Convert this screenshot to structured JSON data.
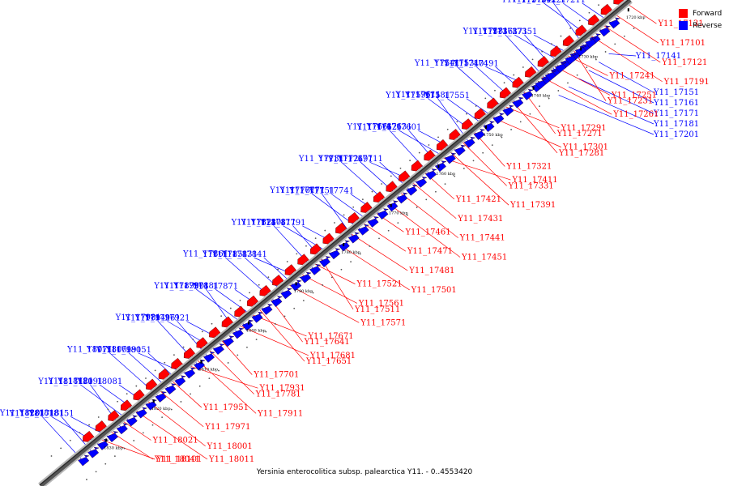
{
  "title": "Yersinia enterocolitica subsp. palearctica Y11. - 0..4553420",
  "legend": [
    {
      "label": "Forward",
      "color": "#ff0000"
    },
    {
      "label": "Reverse",
      "color": "#0000ff"
    }
  ],
  "colors": {
    "forward": "#ff0000",
    "reverse": "#0000ff",
    "axis": "#555555"
  },
  "scale_ticks": [
    "1720 kbp",
    "1730 kbp",
    "1740 kbp",
    "1750 kbp",
    "1760 kbp",
    "1770 kbp",
    "1780 kbp",
    "1790 kbp",
    "1800 kbp",
    "1810 kbp",
    "1820 kbp",
    "1830 kbp"
  ],
  "reverse_genes": [
    "Y11_17211",
    "Y11_17221",
    "Y11_17311",
    "Y11_17341",
    "Y11_17351",
    "Y11_17361",
    "Y11_17371",
    "Y11_17381",
    "Y11_17401",
    "Y11_17491",
    "Y11_17531",
    "Y11_17541",
    "Y11_17551",
    "Y11_17581",
    "Y11_17591",
    "Y11_17611",
    "Y11_17601",
    "Y11_17621",
    "Y11_17631",
    "Y11_17661",
    "Y11_17691",
    "Y11_17711",
    "Y11_17721",
    "Y11_17731",
    "Y11_17741",
    "Y11_17751",
    "Y11_17761",
    "Y11_17771",
    "Y11_17791",
    "Y11_17801",
    "Y11_17811",
    "Y11_17821",
    "Y11_17831",
    "Y11_17841",
    "Y11_17851",
    "Y11_17861",
    "Y11_17871",
    "Y11_17881",
    "Y11_17891",
    "Y11_17901",
    "Y11_17921",
    "Y11_17941",
    "Y11_17961",
    "Y11_17981",
    "Y11_17991",
    "Y11_18051",
    "Y11_18061",
    "Y11_18071",
    "Y11_18081",
    "Y11_18091",
    "Y11_18111",
    "Y11_18121",
    "Y11_18151",
    "Y11_18171",
    "Y11_18181",
    "Y11_18201",
    "Y11_17141",
    "Y11_17151",
    "Y11_17161",
    "Y11_17171",
    "Y11_17181",
    "Y11_17201"
  ],
  "forward_genes": [
    "Y11_17131",
    "Y11_17101",
    "Y11_17121",
    "Y11_17191",
    "Y11_17231",
    "Y11_17241",
    "Y11_17251",
    "Y11_17261",
    "Y11_17271",
    "Y11_17281",
    "Y11_17291",
    "Y11_17301",
    "Y11_17321",
    "Y11_17331",
    "Y11_17391",
    "Y11_17411",
    "Y11_17421",
    "Y11_17431",
    "Y11_17441",
    "Y11_17451",
    "Y11_17461",
    "Y11_17471",
    "Y11_17481",
    "Y11_17501",
    "Y11_17511",
    "Y11_17521",
    "Y11_17561",
    "Y11_17571",
    "Y11_17641",
    "Y11_17651",
    "Y11_17671",
    "Y11_17681",
    "Y11_17701",
    "Y11_17781",
    "Y11_17911",
    "Y11_17931",
    "Y11_17951",
    "Y11_17971",
    "Y11_18001",
    "Y11_18011",
    "Y11_18021",
    "Y11_18041",
    "Y11_18101"
  ]
}
